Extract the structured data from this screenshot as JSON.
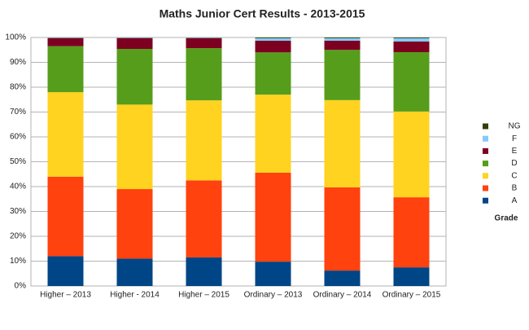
{
  "chart_data": {
    "type": "stacked_bar_percent",
    "title": "Maths Junior Cert Results - 2013-2015",
    "categories": [
      "Higher – 2013",
      "Higher - 2014",
      "Higher – 2015",
      "Ordinary – 2013",
      "Ordinary – 2014",
      "Ordinary – 2015"
    ],
    "series": [
      {
        "name": "A",
        "color": "#004586",
        "values": [
          12,
          11,
          11.5,
          9.8,
          6.2,
          7.5
        ]
      },
      {
        "name": "B",
        "color": "#ff420e",
        "values": [
          32,
          28,
          31,
          35.8,
          33.5,
          28.2
        ]
      },
      {
        "name": "C",
        "color": "#ffd320",
        "values": [
          34,
          34,
          32.2,
          31.4,
          35.1,
          34.5
        ]
      },
      {
        "name": "D",
        "color": "#579d1c",
        "values": [
          18.5,
          22.4,
          21,
          17,
          20.2,
          23.9
        ]
      },
      {
        "name": "E",
        "color": "#7e0021",
        "values": [
          3.2,
          4.3,
          4,
          4.7,
          3.7,
          4.3
        ]
      },
      {
        "name": "F",
        "color": "#83caff",
        "values": [
          0.2,
          0.2,
          0.2,
          1,
          1,
          1.3
        ]
      },
      {
        "name": "NG",
        "color": "#314004",
        "values": [
          0.1,
          0.1,
          0.1,
          0.3,
          0.3,
          0.3
        ]
      }
    ],
    "legend_title": "Grade",
    "legend_position": "right",
    "ylim": [
      0,
      100
    ],
    "yticks": [
      {
        "value": 0,
        "label": "0%"
      },
      {
        "value": 10,
        "label": "10%"
      },
      {
        "value": 20,
        "label": "20%"
      },
      {
        "value": 30,
        "label": "30%"
      },
      {
        "value": 40,
        "label": "40%"
      },
      {
        "value": 50,
        "label": "50%"
      },
      {
        "value": 60,
        "label": "60%"
      },
      {
        "value": 70,
        "label": "70%"
      },
      {
        "value": 80,
        "label": "80%"
      },
      {
        "value": 90,
        "label": "90%"
      },
      {
        "value": 100,
        "label": "100%"
      }
    ],
    "grid": true
  }
}
